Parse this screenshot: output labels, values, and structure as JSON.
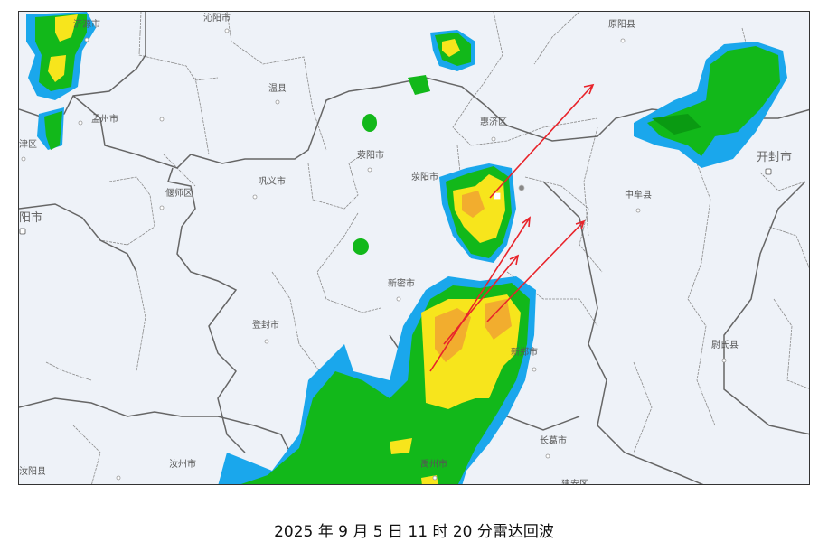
{
  "map": {
    "labels": [
      "济源市",
      "沁阳市",
      "温县",
      "孟州市",
      "津区",
      "荥阳市",
      "巩义市",
      "偃师区",
      "阳市",
      "荥阳市",
      "原阳县",
      "惠济区",
      "中牟县",
      "开封市",
      "新密市",
      "登封市",
      "新郑市",
      "尉氏县",
      "长葛市",
      "汝州市",
      "禹州市",
      "汝阳县",
      "建安区"
    ],
    "colors": {
      "background": "#eef2f8",
      "echo_blue": "#1aa7ec",
      "echo_green": "#12b81a",
      "echo_dark_green": "#0a9a12",
      "echo_yellow": "#f7e51c",
      "echo_orange": "#f2ad2e",
      "arrow": "#e8232a",
      "boundary": "#666666"
    },
    "overlay": "red-motion-arrows"
  },
  "caption": "2025 年 9 月 5 日 11 时 20 分雷达回波"
}
